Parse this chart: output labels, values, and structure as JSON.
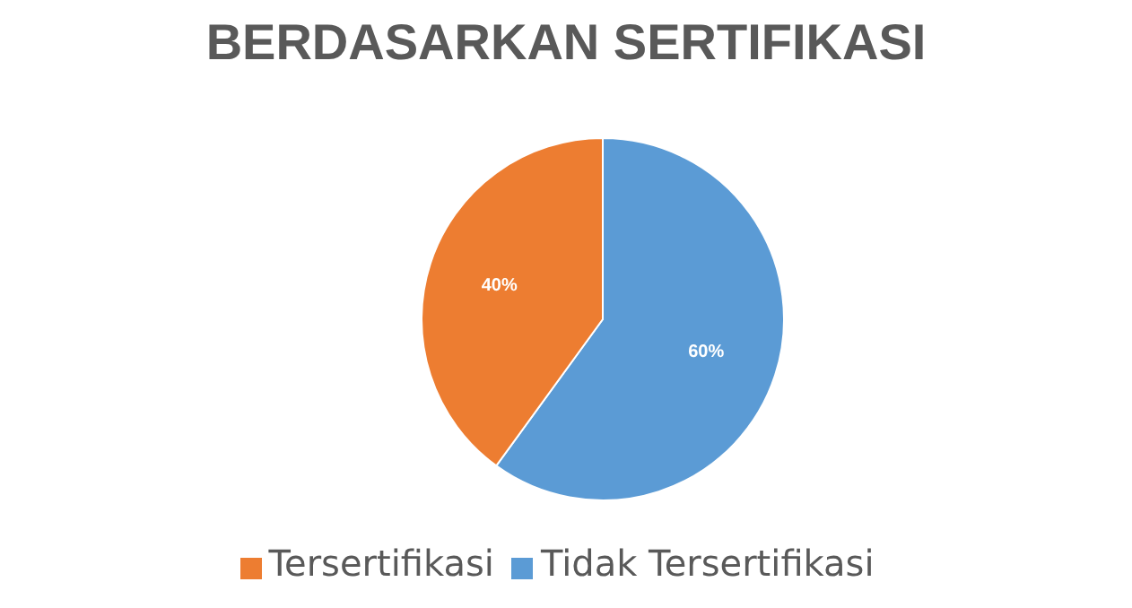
{
  "chart_data": {
    "type": "pie",
    "title": "BERDASARKAN SERTIFIKASI",
    "categories": [
      "Tidak Tersertifikasi",
      "Tersertifikasi"
    ],
    "values": [
      60,
      40
    ],
    "colors": [
      "#5b9bd5",
      "#ed7d31"
    ],
    "value_labels": [
      "60%",
      "40%"
    ],
    "legend": "bottom"
  }
}
